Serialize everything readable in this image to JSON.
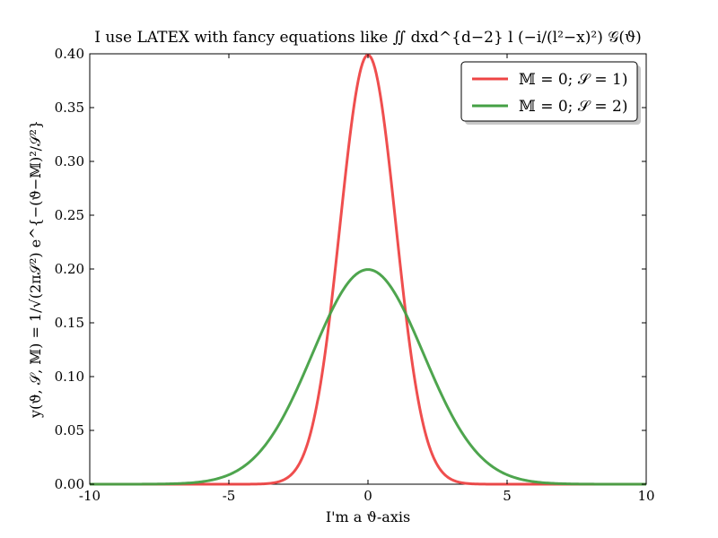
{
  "chart_data": {
    "type": "line",
    "title": "I use LATEX with fancy equations like ∬ dxd^{d−2} l (−i/(l²−x)²) 𝒢(ϑ)",
    "xlabel": "I'm a ϑ-axis",
    "ylabel": "y(ϑ, 𝒮, 𝕄) = 1/√(2π𝒮²) e^{−(ϑ−𝕄)²/𝒮²}",
    "xlim": [
      -10,
      10
    ],
    "ylim": [
      0,
      0.4
    ],
    "x_ticks": [
      -10,
      -5,
      0,
      5,
      10
    ],
    "x_tick_labels": [
      "-10",
      "-5",
      "0",
      "5",
      "10"
    ],
    "y_ticks": [
      0.0,
      0.05,
      0.1,
      0.15,
      0.2,
      0.25,
      0.3,
      0.35,
      0.4
    ],
    "y_tick_labels": [
      "0.00",
      "0.05",
      "0.10",
      "0.15",
      "0.20",
      "0.25",
      "0.30",
      "0.35",
      "0.40"
    ],
    "grid": false,
    "legend_position": "top-right",
    "series": [
      {
        "name": "𝕄 = 0; 𝒮 = 1)",
        "color": "#ee4444",
        "x": [
          -10,
          -5,
          -4,
          -3,
          -2.5,
          -2,
          -1.5,
          -1.25,
          -1,
          -0.75,
          -0.5,
          -0.25,
          0,
          0.25,
          0.5,
          0.75,
          1,
          1.25,
          1.5,
          2,
          2.5,
          3,
          4,
          5,
          10
        ],
        "y": [
          0.0,
          0.0,
          0.0001,
          0.0044,
          0.0175,
          0.054,
          0.1295,
          0.1826,
          0.242,
          0.3011,
          0.3521,
          0.3867,
          0.3989,
          0.3867,
          0.3521,
          0.3011,
          0.242,
          0.1826,
          0.1295,
          0.054,
          0.0175,
          0.0044,
          0.0001,
          0.0,
          0.0
        ]
      },
      {
        "name": "𝕄 = 0; 𝒮 = 2)",
        "color": "#44a044",
        "x": [
          -10,
          -8,
          -7,
          -6,
          -5,
          -4,
          -3,
          -2.5,
          -2,
          -1.5,
          -1,
          -0.5,
          0,
          0.5,
          1,
          1.5,
          2,
          2.5,
          3,
          4,
          5,
          6,
          7,
          8,
          10
        ],
        "y": [
          0.0,
          0.0001,
          0.0004,
          0.0022,
          0.0088,
          0.027,
          0.0648,
          0.0913,
          0.121,
          0.1506,
          0.176,
          0.1933,
          0.1995,
          0.1933,
          0.176,
          0.1506,
          0.121,
          0.0913,
          0.0648,
          0.027,
          0.0088,
          0.0022,
          0.0004,
          0.0001,
          0.0
        ]
      }
    ]
  }
}
